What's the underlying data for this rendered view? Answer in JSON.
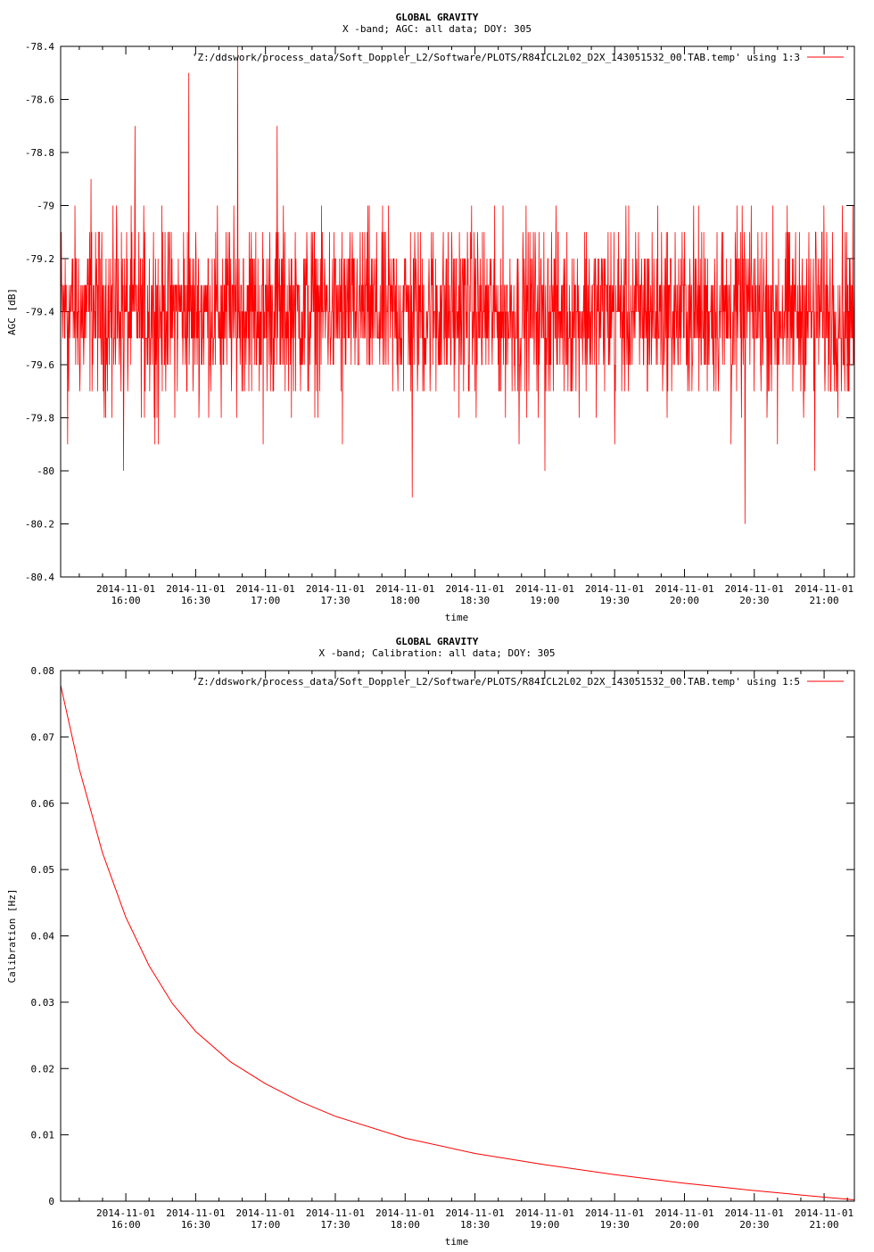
{
  "colors": {
    "series": "#ff0000",
    "axis": "#000000",
    "background": "#ffffff"
  },
  "chart_data": [
    {
      "type": "line",
      "title": "GLOBAL GRAVITY",
      "subtitle": "X -band; AGC: all data; DOY: 305",
      "xlabel": "time",
      "ylabel": "AGC [dB]",
      "ylim": [
        -80.4,
        -78.4
      ],
      "y_ticks": [
        -78.4,
        -78.6,
        -78.8,
        -79,
        -79.2,
        -79.4,
        -79.6,
        -79.8,
        -80,
        -80.2,
        -80.4
      ],
      "x_tick_dates": [
        "2014-11-01",
        "2014-11-01",
        "2014-11-01",
        "2014-11-01",
        "2014-11-01",
        "2014-11-01",
        "2014-11-01",
        "2014-11-01",
        "2014-11-01",
        "2014-11-01",
        "2014-11-01"
      ],
      "x_tick_times": [
        "16:00",
        "16:30",
        "17:00",
        "17:30",
        "18:00",
        "18:30",
        "19:00",
        "19:30",
        "20:00",
        "20:30",
        "21:00"
      ],
      "xlim": [
        "15:32",
        "21:13"
      ],
      "grid": false,
      "legend_position": "top-right",
      "series": [
        {
          "name": "'Z:/ddswork/process_data/Soft_Doppler_L2/Software/PLOTS/R84ICL2L02_D2X_143051532_00.TAB.temp' using 1:3",
          "note": "noisy signal fluctuating mostly between -79.8 and -79.0 dB",
          "x": [
            "15:32",
            "15:35",
            "15:45",
            "15:54",
            "15:56",
            "15:59",
            "16:01",
            "16:04",
            "16:08",
            "16:14",
            "16:18",
            "16:27",
            "16:29",
            "16:41",
            "16:48",
            "16:53",
            "16:55",
            "16:59",
            "17:05",
            "17:14",
            "17:33",
            "17:50",
            "18:03",
            "18:27",
            "18:40",
            "18:49",
            "19:00",
            "19:08",
            "19:30",
            "19:58",
            "20:20",
            "20:26",
            "20:31",
            "20:40",
            "20:56",
            "20:59",
            "21:04",
            "21:13"
          ],
          "values": [
            -79.3,
            -79.9,
            -78.9,
            -79.8,
            -79.0,
            -80.0,
            -79.6,
            -78.7,
            -79.8,
            -79.9,
            -79.1,
            -78.5,
            -79.6,
            -79.8,
            -78.4,
            -79.1,
            -79.5,
            -79.9,
            -78.7,
            -79.3,
            -79.9,
            -79.1,
            -80.1,
            -79.2,
            -79.6,
            -79.9,
            -80.0,
            -79.3,
            -79.9,
            -79.4,
            -79.9,
            -80.2,
            -79.5,
            -79.9,
            -80.0,
            -79.1,
            -79.6,
            -79.3
          ]
        }
      ]
    },
    {
      "type": "line",
      "title": "GLOBAL GRAVITY",
      "subtitle": "X -band; Calibration: all data; DOY: 305",
      "xlabel": "time",
      "ylabel": "Calibration [Hz]",
      "ylim": [
        0,
        0.08
      ],
      "y_ticks": [
        0.08,
        0.07,
        0.06,
        0.05,
        0.04,
        0.03,
        0.02,
        0.01,
        0
      ],
      "x_tick_dates": [
        "2014-11-01",
        "2014-11-01",
        "2014-11-01",
        "2014-11-01",
        "2014-11-01",
        "2014-11-01",
        "2014-11-01",
        "2014-11-01",
        "2014-11-01",
        "2014-11-01",
        "2014-11-01"
      ],
      "x_tick_times": [
        "16:00",
        "16:30",
        "17:00",
        "17:30",
        "18:00",
        "18:30",
        "19:00",
        "19:30",
        "20:00",
        "20:30",
        "21:00"
      ],
      "xlim": [
        "15:32",
        "21:13"
      ],
      "grid": false,
      "legend_position": "top-right",
      "series": [
        {
          "name": "'Z:/ddswork/process_data/Soft_Doppler_L2/Software/PLOTS/R84ICL2L02_D2X_143051532_00.TAB.temp' using 1:5",
          "x": [
            "15:32",
            "15:40",
            "15:50",
            "16:00",
            "16:10",
            "16:20",
            "16:30",
            "16:45",
            "17:00",
            "17:15",
            "17:30",
            "18:00",
            "18:30",
            "19:00",
            "19:30",
            "20:00",
            "20:30",
            "21:00",
            "21:13"
          ],
          "values": [
            0.0778,
            0.0652,
            0.0525,
            0.0428,
            0.0355,
            0.0298,
            0.0256,
            0.021,
            0.0177,
            0.015,
            0.0128,
            0.0095,
            0.0072,
            0.0055,
            0.004,
            0.0027,
            0.0016,
            0.0006,
            0.0002
          ]
        }
      ]
    }
  ]
}
